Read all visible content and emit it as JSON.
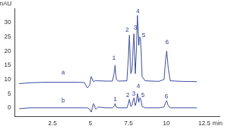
{
  "chart_data": {
    "type": "line",
    "x_label": "min",
    "y_label": "mAU",
    "x": [
      0.3,
      1,
      2,
      3,
      4,
      4.6,
      4.8,
      4.95,
      5.05,
      5.2,
      5.35,
      5.5,
      6,
      6.45,
      6.55,
      6.62,
      6.7,
      6.85,
      7.4,
      7.5,
      7.56,
      7.65,
      7.72,
      7.8,
      7.86,
      7.95,
      8.02,
      8.1,
      8.18,
      8.24,
      8.3,
      8.4,
      8.6,
      9.5,
      9.85,
      9.95,
      10.02,
      10.1,
      10.25,
      11,
      12
    ],
    "series": [
      {
        "color": "#2b3f9e",
        "values": [
          8.5,
          8.8,
          9.0,
          9.0,
          9.0,
          8.9,
          7.0,
          8.0,
          11.0,
          9.2,
          9.6,
          9.5,
          9.4,
          9.4,
          12,
          15,
          10,
          9.4,
          9.5,
          18,
          25.5,
          12,
          13,
          20,
          26,
          12,
          20,
          32.5,
          22,
          25,
          24,
          11,
          9.5,
          9.3,
          10,
          17,
          20,
          15,
          9.5,
          9.3,
          9.2
        ]
      },
      {
        "color": "#2b3f9e",
        "values": [
          -0.3,
          0,
          0,
          0,
          0,
          0,
          0,
          -0.5,
          -1.5,
          1.5,
          -0.5,
          0.3,
          0,
          0,
          0.5,
          1.5,
          0.2,
          0,
          0,
          1.5,
          3,
          0.5,
          0.8,
          2.5,
          3.5,
          0.8,
          2,
          5,
          2,
          3.5,
          3.3,
          0.5,
          0,
          0,
          0.3,
          2,
          2.5,
          1,
          0,
          0,
          0
        ]
      }
    ],
    "annotations": [
      {
        "text": "a",
        "x": 3.2,
        "y": 12.5
      },
      {
        "text": "1",
        "x": 6.55,
        "y": 17.5
      },
      {
        "text": "2",
        "x": 7.42,
        "y": 27.5
      },
      {
        "text": "3",
        "x": 7.95,
        "y": 28
      },
      {
        "text": "4",
        "x": 8.12,
        "y": 34
      },
      {
        "text": "5",
        "x": 8.5,
        "y": 25.5
      },
      {
        "text": "6",
        "x": 10.05,
        "y": 23
      },
      {
        "text": "b",
        "x": 3.2,
        "y": 2.5
      },
      {
        "text": "1",
        "x": 6.62,
        "y": 3
      },
      {
        "text": "2",
        "x": 7.45,
        "y": 4.5
      },
      {
        "text": "3",
        "x": 7.85,
        "y": 5
      },
      {
        "text": "4",
        "x": 8.15,
        "y": 7.5
      },
      {
        "text": "5",
        "x": 8.45,
        "y": 4.5
      },
      {
        "text": "6",
        "x": 10.0,
        "y": 4
      }
    ],
    "xlim": [
      0,
      13.5
    ],
    "xticks": [
      2.5,
      5,
      7.5,
      10,
      12.5
    ],
    "ylim": [
      -3,
      35
    ],
    "yticks": [
      0,
      5,
      10,
      15,
      20,
      25,
      30
    ],
    "grid": false
  }
}
